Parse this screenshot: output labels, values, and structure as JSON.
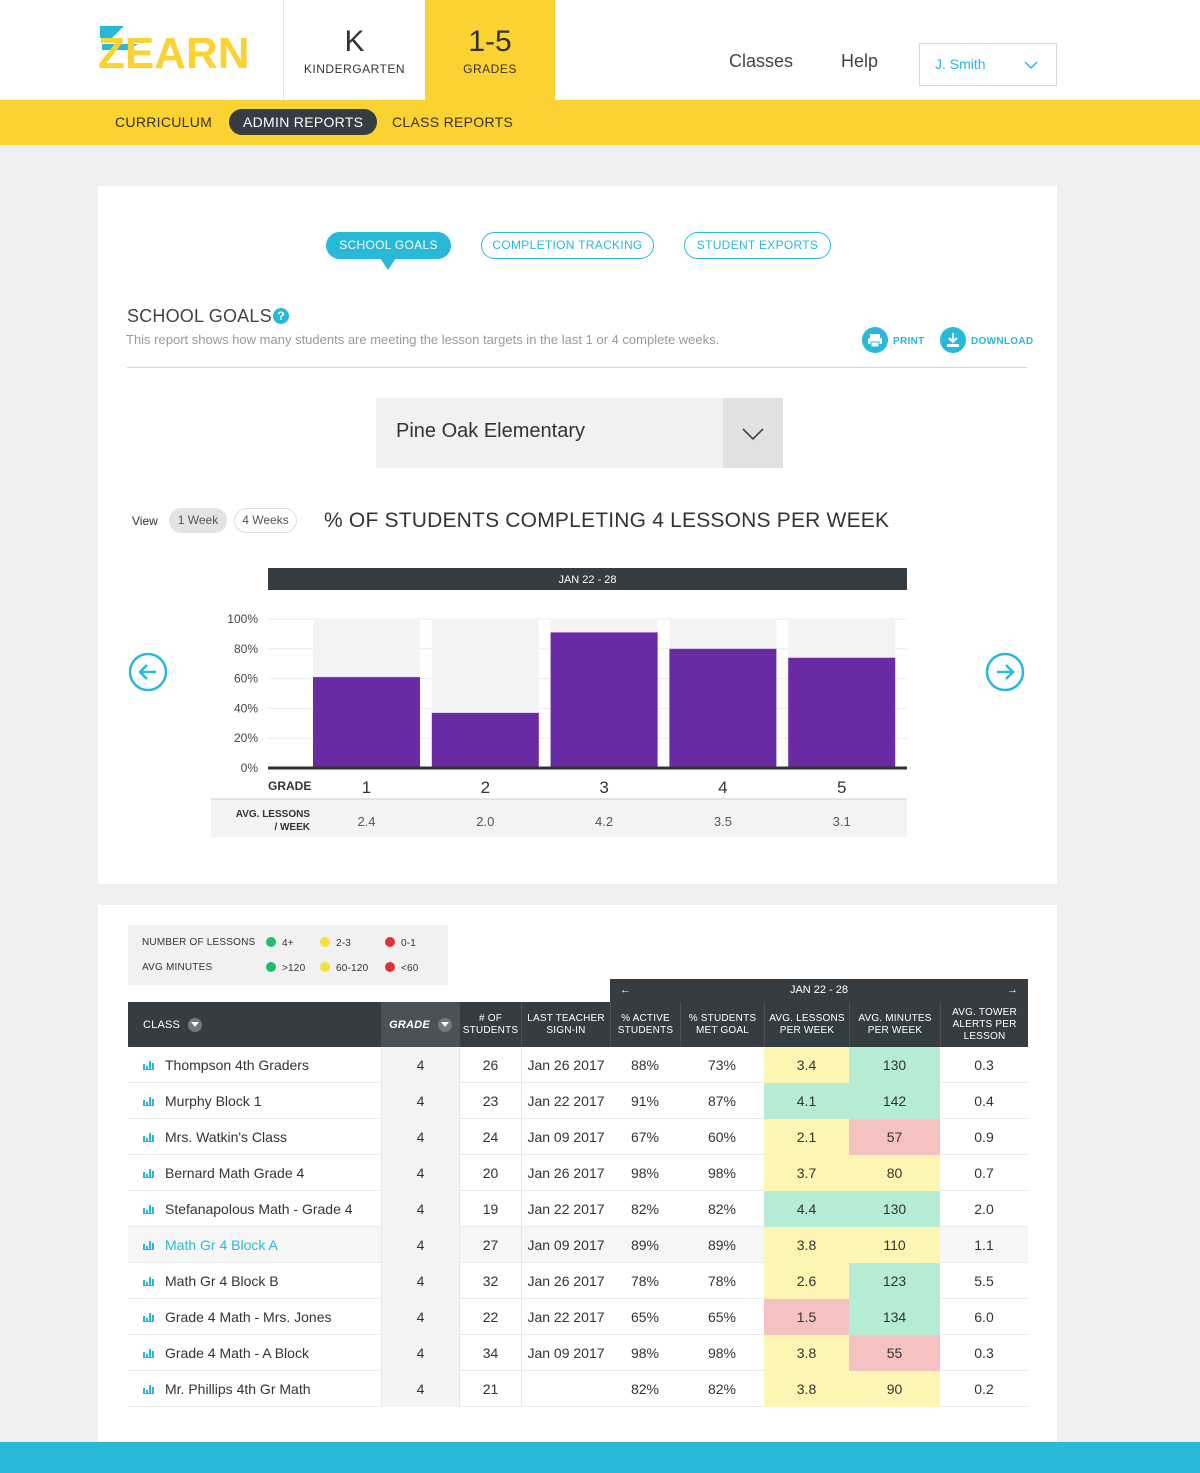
{
  "brand": {
    "logo_text": "ZEARN"
  },
  "grade_tabs": [
    {
      "big": "K",
      "small": "KINDERGARTEN"
    },
    {
      "big": "1-5",
      "small": "GRADES"
    }
  ],
  "top_nav": {
    "classes": "Classes",
    "help": "Help",
    "user": "J. Smith"
  },
  "sub_nav": {
    "curriculum": "CURRICULUM",
    "admin_reports": "ADMIN REPORTS",
    "class_reports": "CLASS REPORTS"
  },
  "report_tabs": {
    "school_goals": "SCHOOL GOALS",
    "completion_tracking": "COMPLETION TRACKING",
    "student_exports": "STUDENT EXPORTS"
  },
  "section": {
    "title": "SCHOOL GOALS",
    "help": "?",
    "description": "This report shows how many students are meeting the lesson targets in the last 1 or 4 complete weeks.",
    "print": "PRINT",
    "download": "DOWNLOAD"
  },
  "school_select": {
    "value": "Pine Oak Elementary"
  },
  "view": {
    "label": "View",
    "one_week": "1 Week",
    "four_weeks": "4 Weeks"
  },
  "chart_data": {
    "type": "bar",
    "title": "% OF STUDENTS COMPLETING 4 LESSONS PER WEEK",
    "week": "JAN 22 - 28",
    "categories": [
      "1",
      "2",
      "3",
      "4",
      "5"
    ],
    "values": [
      61,
      37,
      91,
      80,
      74
    ],
    "ylim": [
      0,
      100
    ],
    "yticks": [
      "100%",
      "80%",
      "60%",
      "40%",
      "20%",
      "0%"
    ],
    "xlabel": "GRADE",
    "bar_color": "#6a2aa3",
    "avg_lessons_label_1": "AVG. LESSONS",
    "avg_lessons_label_2": "/ WEEK",
    "avg_lessons": [
      "2.4",
      "2.0",
      "4.2",
      "3.5",
      "3.1"
    ]
  },
  "legend": {
    "lessons_label": "NUMBER OF LESSONS",
    "lessons": [
      "4+",
      "2-3",
      "0-1"
    ],
    "minutes_label": "AVG MINUTES",
    "minutes": [
      ">120",
      "60-120",
      "<60"
    ],
    "colors": {
      "green": "#1fbf6a",
      "yellow": "#f6e03a",
      "red": "#e03232"
    }
  },
  "table": {
    "week": "JAN 22 - 28",
    "headers": {
      "class": "CLASS",
      "grade": "GRADE",
      "students_1": "# OF",
      "students_2": "STUDENTS",
      "signin_1": "LAST TEACHER",
      "signin_2": "SIGN-IN",
      "active_1": "% ACTIVE",
      "active_2": "STUDENTS",
      "met_1": "% STUDENTS",
      "met_2": "MET GOAL",
      "lessons_1": "AVG. LESSONS",
      "lessons_2": "PER WEEK",
      "minutes_1": "AVG. MINUTES",
      "minutes_2": "PER WEEK",
      "tower_1": "AVG. TOWER",
      "tower_2": "ALERTS PER",
      "tower_3": "LESSON"
    },
    "rows": [
      {
        "name": "Thompson 4th Graders",
        "grade": "4",
        "students": "26",
        "signin": "Jan 26 2017",
        "active": "88%",
        "met": "73%",
        "lessons": "3.4",
        "lessons_c": "yellow",
        "minutes": "130",
        "minutes_c": "green",
        "tower": "0.3"
      },
      {
        "name": "Murphy Block 1",
        "grade": "4",
        "students": "23",
        "signin": "Jan 22 2017",
        "active": "91%",
        "met": "87%",
        "lessons": "4.1",
        "lessons_c": "green",
        "minutes": "142",
        "minutes_c": "green",
        "tower": "0.4"
      },
      {
        "name": "Mrs. Watkin's Class",
        "grade": "4",
        "students": "24",
        "signin": "Jan 09 2017",
        "active": "67%",
        "met": "60%",
        "lessons": "2.1",
        "lessons_c": "yellow",
        "minutes": "57",
        "minutes_c": "red",
        "tower": "0.9"
      },
      {
        "name": "Bernard Math Grade 4",
        "grade": "4",
        "students": "20",
        "signin": "Jan 26 2017",
        "active": "98%",
        "met": "98%",
        "lessons": "3.7",
        "lessons_c": "yellow",
        "minutes": "80",
        "minutes_c": "yellow",
        "tower": "0.7"
      },
      {
        "name": "Stefanapolous Math - Grade 4",
        "grade": "4",
        "students": "19",
        "signin": "Jan 22 2017",
        "active": "82%",
        "met": "82%",
        "lessons": "4.4",
        "lessons_c": "green",
        "minutes": "130",
        "minutes_c": "green",
        "tower": "2.0"
      },
      {
        "name": "Math Gr 4 Block A",
        "grade": "4",
        "students": "27",
        "signin": "Jan 09 2017",
        "active": "89%",
        "met": "89%",
        "lessons": "3.8",
        "lessons_c": "yellow",
        "minutes": "110",
        "minutes_c": "yellow",
        "tower": "1.1",
        "highlight": true
      },
      {
        "name": "Math Gr 4 Block B",
        "grade": "4",
        "students": "32",
        "signin": "Jan 26 2017",
        "active": "78%",
        "met": "78%",
        "lessons": "2.6",
        "lessons_c": "yellow",
        "minutes": "123",
        "minutes_c": "green",
        "tower": "5.5"
      },
      {
        "name": "Grade 4 Math - Mrs. Jones",
        "grade": "4",
        "students": "22",
        "signin": "Jan 22 2017",
        "active": "65%",
        "met": "65%",
        "lessons": "1.5",
        "lessons_c": "red",
        "minutes": "134",
        "minutes_c": "green",
        "tower": "6.0"
      },
      {
        "name": "Grade 4 Math - A Block",
        "grade": "4",
        "students": "34",
        "signin": "Jan 09 2017",
        "active": "98%",
        "met": "98%",
        "lessons": "3.8",
        "lessons_c": "yellow",
        "minutes": "55",
        "minutes_c": "red",
        "tower": "0.3"
      },
      {
        "name": "Mr. Phillips 4th Gr Math",
        "grade": "4",
        "students": "21",
        "signin": "",
        "active": "82%",
        "met": "82%",
        "lessons": "3.8",
        "lessons_c": "yellow",
        "minutes": "90",
        "minutes_c": "yellow",
        "tower": "0.2"
      }
    ]
  },
  "colors": {
    "accent": "#29b9d8",
    "yellow": "#fad232",
    "dark": "#353d43"
  }
}
